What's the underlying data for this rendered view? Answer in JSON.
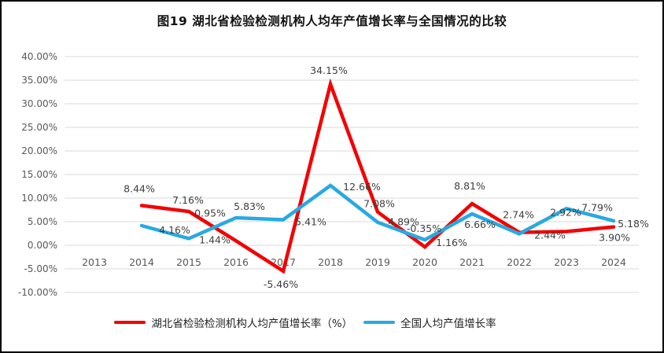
{
  "figure": {
    "title": "图19  湖北省检验检测机构人均年产值增长率与全国情况的比较"
  },
  "legend": {
    "items": [
      {
        "label": "湖北省检验检测机构人均产值增长率（%）",
        "color": "#F40000"
      },
      {
        "label": "全国人均产值增长率",
        "color": "#29A9E1"
      }
    ]
  },
  "chart_data": {
    "type": "line",
    "title": "图19  湖北省检验检测机构人均年产值增长率与全国情况的比较",
    "xlabel": "",
    "ylabel": "",
    "categories": [
      "2013",
      "2014",
      "2015",
      "2016",
      "2017",
      "2018",
      "2019",
      "2020",
      "2021",
      "2022",
      "2023",
      "2024"
    ],
    "ylim": [
      -10,
      40
    ],
    "ytick_step": 5,
    "ytick_labels": [
      "40.00%",
      "35.00%",
      "30.00%",
      "25.00%",
      "20.00%",
      "15.00%",
      "10.00%",
      "5.00%",
      "0.00%",
      "-5.00%",
      "-10.00%"
    ],
    "grid": true,
    "legend_position": "bottom",
    "colors": {
      "grid": "#D9D9D9",
      "tick_text": "#595959",
      "label_text": "#3F3F3F"
    },
    "series": [
      {
        "id": "hubei-series",
        "name": "湖北省检验检测机构人均产值增长率（%）",
        "color": "#F40000",
        "values": [
          null,
          8.44,
          7.16,
          0.95,
          -5.46,
          34.15,
          7.08,
          -0.35,
          8.81,
          2.74,
          2.92,
          3.9
        ],
        "label_offsets": [
          null,
          [
            -3,
            -17
          ],
          [
            -1,
            -10
          ],
          [
            -33,
            -31
          ],
          [
            -3,
            21
          ],
          [
            -2,
            -13
          ],
          [
            2,
            -6
          ],
          [
            -1,
            -19
          ],
          [
            -3,
            -18
          ],
          [
            -1,
            -18
          ],
          [
            -1,
            -20
          ],
          [
            1,
            18
          ]
        ]
      },
      {
        "id": "national-series",
        "name": "全国人均产值增长率",
        "color": "#29A9E1",
        "values": [
          null,
          4.16,
          1.44,
          5.83,
          5.41,
          12.66,
          4.89,
          1.16,
          6.66,
          2.44,
          7.79,
          5.18
        ],
        "label_offsets": [
          null,
          [
            42,
            10
          ],
          [
            33,
            6
          ],
          [
            17,
            -10
          ],
          [
            35,
            7
          ],
          [
            40,
            6
          ],
          [
            33,
            4
          ],
          [
            34,
            8
          ],
          [
            10,
            18
          ],
          [
            39,
            6
          ],
          [
            39,
            3
          ],
          [
            25,
            8
          ]
        ]
      }
    ]
  }
}
